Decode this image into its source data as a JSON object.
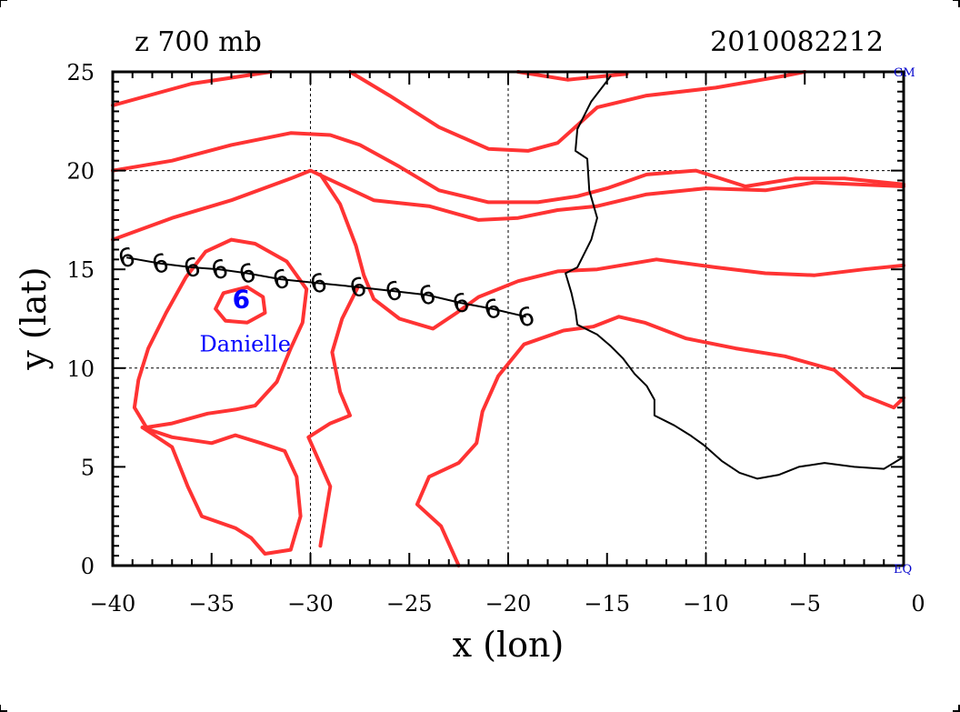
{
  "header": {
    "field_label": "z 700 mb",
    "timestamp": "2010082212"
  },
  "corner_labels": {
    "top_right": "GM",
    "bottom_right": "EQ"
  },
  "colors": {
    "contour": "#ff3333",
    "coastline": "#000000",
    "track": "#000000",
    "storm": "#0000ff",
    "grid": "#000000"
  },
  "chart_data": {
    "type": "map-contour",
    "xlabel": "x (lon)",
    "ylabel": "y (lat)",
    "xlim": [
      -40,
      0
    ],
    "ylim": [
      0,
      25
    ],
    "xticks": [
      -40,
      -35,
      -30,
      -25,
      -20,
      -15,
      -10,
      -5,
      0
    ],
    "yticks": [
      0,
      5,
      10,
      15,
      20,
      25
    ],
    "grid_lines": {
      "x": [
        -30,
        -20,
        -10
      ],
      "y": [
        10,
        20
      ]
    },
    "storm": {
      "name": "Danielle",
      "symbol": "6",
      "lon": -33.5,
      "lat": 13.6,
      "label_lon": -33.3,
      "label_lat": 11.2
    },
    "track": {
      "symbol": "6",
      "points": [
        [
          -39.3,
          15.6
        ],
        [
          -37.6,
          15.3
        ],
        [
          -36.0,
          15.1
        ],
        [
          -34.6,
          15.0
        ],
        [
          -33.2,
          14.8
        ],
        [
          -31.5,
          14.5
        ],
        [
          -29.6,
          14.3
        ],
        [
          -27.6,
          14.1
        ],
        [
          -25.8,
          13.9
        ],
        [
          -24.1,
          13.7
        ],
        [
          -22.4,
          13.3
        ],
        [
          -20.8,
          13.0
        ],
        [
          -19.1,
          12.6
        ]
      ]
    },
    "coastline": [
      [
        -14.8,
        24.8
      ],
      [
        -15.8,
        23.5
      ],
      [
        -16.5,
        22.1
      ],
      [
        -16.6,
        21.0
      ],
      [
        -16.0,
        20.6
      ],
      [
        -15.9,
        19.0
      ],
      [
        -15.5,
        17.6
      ],
      [
        -15.8,
        16.5
      ],
      [
        -16.5,
        15.1
      ],
      [
        -17.1,
        14.8
      ],
      [
        -16.8,
        13.8
      ],
      [
        -16.6,
        12.9
      ],
      [
        -16.5,
        12.2
      ],
      [
        -15.5,
        11.7
      ],
      [
        -14.8,
        11.1
      ],
      [
        -14.2,
        10.5
      ],
      [
        -13.6,
        9.7
      ],
      [
        -13.0,
        9.1
      ],
      [
        -12.6,
        8.4
      ],
      [
        -12.6,
        7.6
      ],
      [
        -11.6,
        7.1
      ],
      [
        -10.8,
        6.6
      ],
      [
        -10.1,
        6.1
      ],
      [
        -9.2,
        5.3
      ],
      [
        -8.3,
        4.7
      ],
      [
        -7.4,
        4.4
      ],
      [
        -6.3,
        4.6
      ],
      [
        -5.3,
        5.0
      ],
      [
        -4.0,
        5.2
      ],
      [
        -2.5,
        5.0
      ],
      [
        -1.0,
        4.9
      ],
      [
        0.0,
        5.5
      ]
    ],
    "contours": [
      [
        [
          -40,
          23.3
        ],
        [
          -36,
          24.4
        ],
        [
          -32,
          25.0
        ]
      ],
      [
        [
          -28,
          25.0
        ],
        [
          -26,
          23.8
        ],
        [
          -23.5,
          22.2
        ],
        [
          -21,
          21.1
        ],
        [
          -19,
          21.0
        ],
        [
          -17.5,
          21.4
        ],
        [
          -15.5,
          23.2
        ],
        [
          -13,
          23.8
        ],
        [
          -9.5,
          24.2
        ],
        [
          -6,
          24.8
        ],
        [
          -5,
          25.0
        ]
      ],
      [
        [
          -19.5,
          25.0
        ],
        [
          -17,
          24.6
        ],
        [
          -14,
          24.9
        ]
      ],
      [
        [
          -40,
          20.0
        ],
        [
          -37,
          20.5
        ],
        [
          -34,
          21.3
        ],
        [
          -31,
          21.9
        ],
        [
          -29,
          21.8
        ],
        [
          -27.5,
          21.3
        ],
        [
          -25.5,
          20.2
        ],
        [
          -23.5,
          19.0
        ],
        [
          -21,
          18.4
        ],
        [
          -18.5,
          18.4
        ],
        [
          -16.5,
          18.7
        ],
        [
          -15,
          19.1
        ],
        [
          -13,
          19.8
        ],
        [
          -10.5,
          20.0
        ],
        [
          -8,
          19.2
        ],
        [
          -5.5,
          19.6
        ],
        [
          -3,
          19.6
        ],
        [
          0,
          19.3
        ]
      ],
      [
        [
          -40,
          16.5
        ],
        [
          -37,
          17.6
        ],
        [
          -34,
          18.5
        ],
        [
          -31,
          19.6
        ],
        [
          -30,
          20.0
        ],
        [
          -28.5,
          19.3
        ],
        [
          -26.8,
          18.5
        ],
        [
          -24,
          18.2
        ],
        [
          -21.5,
          17.5
        ],
        [
          -19.5,
          17.6
        ],
        [
          -17.5,
          18.0
        ],
        [
          -15.5,
          18.2
        ],
        [
          -13,
          18.8
        ],
        [
          -10,
          19.1
        ],
        [
          -7,
          19.0
        ],
        [
          -4.5,
          19.4
        ],
        [
          0,
          19.2
        ]
      ],
      [
        [
          -34.0,
          16.5
        ],
        [
          -32.8,
          16.3
        ],
        [
          -31.2,
          15.4
        ],
        [
          -30.2,
          14.0
        ],
        [
          -30.4,
          12.3
        ],
        [
          -31.0,
          11.0
        ],
        [
          -31.7,
          9.3
        ],
        [
          -32.8,
          8.1
        ],
        [
          -33.8,
          7.9
        ],
        [
          -35.2,
          7.7
        ],
        [
          -37.0,
          7.2
        ],
        [
          -38.3,
          7.0
        ],
        [
          -38.9,
          8.0
        ],
        [
          -38.7,
          9.4
        ],
        [
          -38.2,
          11.0
        ],
        [
          -37.3,
          12.8
        ],
        [
          -36.3,
          14.6
        ],
        [
          -35.3,
          15.9
        ],
        [
          -34.0,
          16.5
        ]
      ],
      [
        [
          -33.2,
          14.1
        ],
        [
          -32.4,
          13.6
        ],
        [
          -32.3,
          12.8
        ],
        [
          -33.2,
          12.3
        ],
        [
          -34.3,
          12.4
        ],
        [
          -34.8,
          13.0
        ],
        [
          -34.4,
          13.8
        ],
        [
          -33.2,
          14.1
        ]
      ],
      [
        [
          -29.5,
          19.8
        ],
        [
          -28.5,
          18.3
        ],
        [
          -27.7,
          16.2
        ],
        [
          -27.3,
          14.7
        ],
        [
          -26.8,
          13.5
        ],
        [
          -25.5,
          12.5
        ],
        [
          -23.8,
          12.0
        ],
        [
          -22.6,
          12.8
        ],
        [
          -21.5,
          13.6
        ],
        [
          -19.5,
          14.4
        ],
        [
          -17.5,
          14.9
        ],
        [
          -15.5,
          15.0
        ],
        [
          -12.5,
          15.5
        ],
        [
          -9.5,
          15.1
        ],
        [
          -7,
          14.8
        ],
        [
          -4.5,
          14.7
        ],
        [
          -2,
          15.0
        ],
        [
          0,
          15.2
        ]
      ],
      [
        [
          -22.5,
          0.0
        ],
        [
          -23.4,
          2.0
        ],
        [
          -24.6,
          3.1
        ],
        [
          -24.0,
          4.5
        ],
        [
          -22.5,
          5.2
        ],
        [
          -21.6,
          6.2
        ],
        [
          -21.3,
          7.8
        ],
        [
          -20.5,
          9.6
        ],
        [
          -19.2,
          11.2
        ],
        [
          -17.2,
          11.9
        ],
        [
          -15.7,
          12.1
        ],
        [
          -14.4,
          12.6
        ],
        [
          -13.1,
          12.3
        ],
        [
          -11.0,
          11.5
        ],
        [
          -8.5,
          11.0
        ],
        [
          -6.0,
          10.6
        ],
        [
          -3.5,
          9.9
        ],
        [
          -2.0,
          8.6
        ],
        [
          -0.5,
          8.0
        ],
        [
          0.0,
          8.5
        ]
      ],
      [
        [
          -29.5,
          1.0
        ],
        [
          -29.0,
          4.0
        ],
        [
          -30.1,
          6.5
        ],
        [
          -29.0,
          7.2
        ],
        [
          -28.0,
          7.6
        ],
        [
          -28.5,
          8.8
        ],
        [
          -28.9,
          10.8
        ],
        [
          -28.4,
          12.5
        ],
        [
          -27.6,
          14.1
        ]
      ],
      [
        [
          -38.5,
          7.0
        ],
        [
          -37.0,
          6.0
        ],
        [
          -36.2,
          4.0
        ],
        [
          -35.5,
          2.5
        ],
        [
          -33.8,
          1.9
        ],
        [
          -33.0,
          1.4
        ],
        [
          -32.3,
          0.6
        ],
        [
          -31.0,
          0.8
        ],
        [
          -30.5,
          2.5
        ],
        [
          -30.7,
          4.5
        ],
        [
          -31.3,
          5.8
        ],
        [
          -32.5,
          6.2
        ],
        [
          -33.8,
          6.6
        ],
        [
          -35.0,
          6.2
        ],
        [
          -37.0,
          6.5
        ],
        [
          -38.5,
          7.0
        ]
      ]
    ]
  }
}
